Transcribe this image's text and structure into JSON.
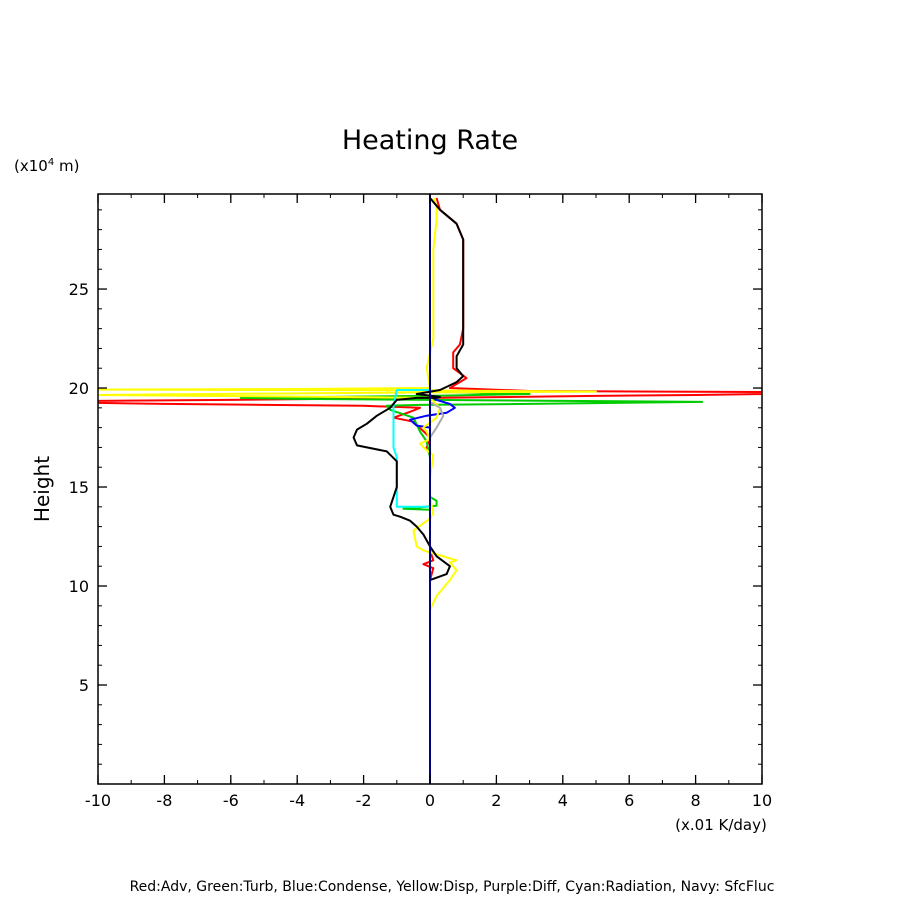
{
  "chart_data": {
    "type": "line",
    "title": "Heating Rate",
    "xlabel": "Height",
    "x_unit": "(x.01 K/day)",
    "y_unit_prefix": "(x10",
    "y_unit_exp": "4",
    "y_unit_suffix": " m)",
    "legend_text": "Red:Adv, Green:Turb, Blue:Condense, Yellow:Disp, Purple:Diff, Cyan:Radiation, Navy: SfcFluc",
    "xlim": [
      -10,
      10
    ],
    "ylim": [
      0,
      29.8
    ],
    "xticks": [
      -10,
      -8,
      -6,
      -4,
      -2,
      0,
      2,
      4,
      6,
      8,
      10
    ],
    "xtick_labels": [
      "-10",
      "-8",
      "-6",
      "-4",
      "-2",
      "0",
      "2",
      "4",
      "6",
      "8",
      "10"
    ],
    "yticks": [
      5,
      10,
      15,
      20,
      25
    ],
    "ytick_labels": [
      "5",
      "10",
      "15",
      "20",
      "25"
    ],
    "grid": false,
    "series": [
      {
        "color": "#ff0000",
        "points": [
          [
            0,
            0
          ],
          [
            0,
            8.5
          ],
          [
            0,
            10.3
          ],
          [
            0.1,
            10.9
          ],
          [
            -0.2,
            11.1
          ],
          [
            0.1,
            11.3
          ],
          [
            0,
            11.8
          ],
          [
            0,
            13.5
          ],
          [
            0,
            16.6
          ],
          [
            -0.1,
            17.0
          ],
          [
            0,
            17.5
          ],
          [
            -0.5,
            18.3
          ],
          [
            -1.1,
            18.5
          ],
          [
            -0.6,
            18.8
          ],
          [
            -0.3,
            19.0
          ],
          [
            -2,
            19.1
          ],
          [
            -5,
            19.15
          ],
          [
            -8,
            19.2
          ],
          [
            -10,
            19.25
          ],
          [
            -10,
            19.35
          ],
          [
            -6,
            19.4
          ],
          [
            -3,
            19.45
          ],
          [
            0,
            19.5
          ],
          [
            5,
            19.6
          ],
          [
            8,
            19.65
          ],
          [
            10,
            19.7
          ],
          [
            10,
            19.8
          ],
          [
            7,
            19.82
          ],
          [
            3,
            19.85
          ],
          [
            0.6,
            20.0
          ],
          [
            1.1,
            20.5
          ],
          [
            0.7,
            21.0
          ],
          [
            0.7,
            21.8
          ],
          [
            0.9,
            22.2
          ],
          [
            1.0,
            23.0
          ],
          [
            1.0,
            27.5
          ],
          [
            0.8,
            28.3
          ],
          [
            0.3,
            29.0
          ],
          [
            0.2,
            29.6
          ]
        ]
      },
      {
        "color": "#00cc00",
        "points": [
          [
            0,
            14.8
          ],
          [
            0,
            14.5
          ],
          [
            0.2,
            14.3
          ],
          [
            0.2,
            14.05
          ],
          [
            -0.8,
            13.9
          ],
          [
            0,
            13.85
          ],
          [
            0,
            16.5
          ],
          [
            -0.1,
            17.3
          ],
          [
            -0.3,
            17.8
          ],
          [
            -0.5,
            18.5
          ],
          [
            -1.2,
            18.9
          ],
          [
            -1.3,
            19.1
          ],
          [
            -0.3,
            19.15
          ],
          [
            3,
            19.2
          ],
          [
            8.2,
            19.3
          ],
          [
            4,
            19.35
          ],
          [
            0,
            19.4
          ],
          [
            -4,
            19.45
          ],
          [
            -5.7,
            19.5
          ],
          [
            -3,
            19.55
          ],
          [
            0,
            19.6
          ],
          [
            3,
            19.7
          ],
          [
            0.5,
            19.8
          ],
          [
            0,
            19.9
          ],
          [
            0,
            20.2
          ]
        ]
      },
      {
        "color": "#0000ff",
        "points": [
          [
            0,
            17.5
          ],
          [
            0,
            18.0
          ],
          [
            -0.4,
            18.1
          ],
          [
            -0.6,
            18.4
          ],
          [
            -0.1,
            18.6
          ],
          [
            0.5,
            18.75
          ],
          [
            0.75,
            19.0
          ],
          [
            0.6,
            19.2
          ],
          [
            0.2,
            19.4
          ],
          [
            0,
            19.6
          ],
          [
            0,
            20.0
          ]
        ]
      },
      {
        "color": "#ffff00",
        "points": [
          [
            0,
            0
          ],
          [
            0,
            8.8
          ],
          [
            0.2,
            9.5
          ],
          [
            0.6,
            10.3
          ],
          [
            0.8,
            10.8
          ],
          [
            0.6,
            11.2
          ],
          [
            0.8,
            11.3
          ],
          [
            0.2,
            11.6
          ],
          [
            -0.2,
            11.8
          ],
          [
            -0.4,
            12.0
          ],
          [
            -0.5,
            12.8
          ],
          [
            0,
            13.4
          ],
          [
            0.1,
            13.7
          ],
          [
            0,
            14.5
          ],
          [
            0,
            15.5
          ],
          [
            0.1,
            16.6
          ],
          [
            -0.2,
            17.0
          ],
          [
            -0.3,
            17.2
          ],
          [
            0,
            17.4
          ],
          [
            -0.1,
            17.8
          ],
          [
            -0.2,
            18.0
          ],
          [
            0.2,
            18.5
          ],
          [
            0.3,
            19.0
          ],
          [
            0,
            19.5
          ],
          [
            -3,
            19.55
          ],
          [
            -10,
            19.65
          ],
          [
            -5,
            19.72
          ],
          [
            0,
            19.78
          ],
          [
            5,
            19.82
          ],
          [
            0,
            19.88
          ],
          [
            -10,
            19.92
          ],
          [
            -4,
            19.95
          ],
          [
            0,
            20.0
          ],
          [
            -0.1,
            21.0
          ],
          [
            0.1,
            22.5
          ],
          [
            0.1,
            25
          ],
          [
            0.1,
            27
          ],
          [
            0.2,
            28.5
          ],
          [
            0.2,
            29.2
          ],
          [
            0.1,
            29.6
          ]
        ]
      },
      {
        "color": "#00ffff",
        "points": [
          [
            0,
            13.9
          ],
          [
            0,
            14.0
          ],
          [
            -1.0,
            14.0
          ],
          [
            -1.0,
            16.5
          ],
          [
            -1.1,
            17.0
          ],
          [
            -1.1,
            19.1
          ],
          [
            -1.0,
            19.9
          ],
          [
            0,
            19.9
          ]
        ]
      },
      {
        "color": "#aaaaaa",
        "points": [
          [
            0,
            17.5
          ],
          [
            0.2,
            18.0
          ],
          [
            0.4,
            18.6
          ],
          [
            0.3,
            19.0
          ],
          [
            0,
            19.3
          ]
        ]
      },
      {
        "color": "#000000",
        "points": [
          [
            0,
            8.4
          ],
          [
            0,
            10.3
          ],
          [
            0.5,
            10.6
          ],
          [
            0.6,
            11.0
          ],
          [
            0.2,
            11.5
          ],
          [
            0,
            12.0
          ],
          [
            -0.2,
            12.6
          ],
          [
            -0.4,
            13.0
          ],
          [
            -0.6,
            13.3
          ],
          [
            -0.9,
            13.5
          ],
          [
            -1.1,
            13.6
          ],
          [
            -1.2,
            14.0
          ],
          [
            -1.1,
            14.5
          ],
          [
            -1.0,
            15.0
          ],
          [
            -1.0,
            16.3
          ],
          [
            -1.3,
            16.8
          ],
          [
            -2.2,
            17.1
          ],
          [
            -2.3,
            17.5
          ],
          [
            -2.2,
            17.9
          ],
          [
            -1.9,
            18.2
          ],
          [
            -1.6,
            18.6
          ],
          [
            -1.2,
            19.0
          ],
          [
            -1.0,
            19.4
          ],
          [
            -0.4,
            19.5
          ],
          [
            0.2,
            19.5
          ],
          [
            0.3,
            19.55
          ],
          [
            -0.4,
            19.7
          ],
          [
            0.3,
            19.9
          ],
          [
            0.8,
            20.3
          ],
          [
            1.0,
            20.6
          ],
          [
            0.8,
            21.0
          ],
          [
            0.8,
            21.6
          ],
          [
            1.0,
            22.2
          ],
          [
            1.0,
            23.0
          ],
          [
            1.0,
            27.5
          ],
          [
            0.8,
            28.3
          ],
          [
            0.3,
            29.0
          ],
          [
            0,
            29.6
          ]
        ]
      },
      {
        "color": "#000080",
        "points": [
          [
            0,
            0
          ],
          [
            0,
            29.8
          ]
        ]
      }
    ]
  }
}
